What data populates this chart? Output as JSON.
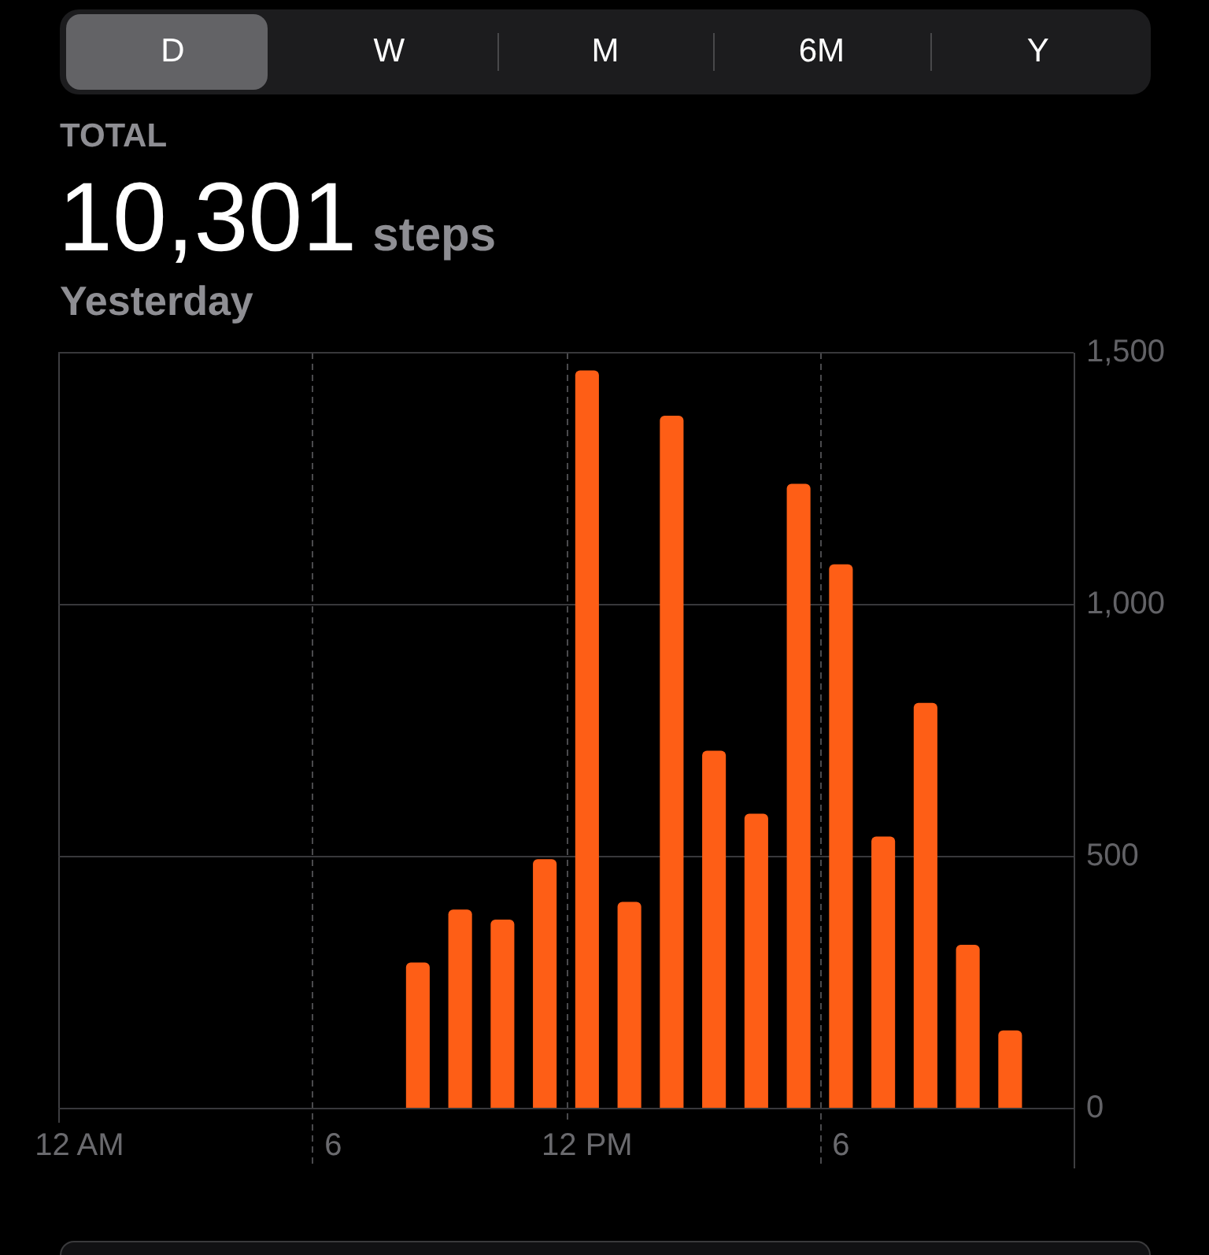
{
  "chart_data": {
    "type": "bar",
    "title": "10,301 steps",
    "subtitle": "Yesterday",
    "annotations": [
      "D",
      "W",
      "M",
      "6M",
      "Y",
      "TOTAL"
    ],
    "categories": [
      "12 AM",
      null,
      null,
      null,
      null,
      null,
      "6",
      null,
      null,
      null,
      null,
      null,
      "12 PM",
      null,
      null,
      null,
      null,
      null,
      "6",
      null,
      null,
      null,
      null,
      null
    ],
    "values": [
      null,
      null,
      null,
      null,
      null,
      null,
      null,
      null,
      290,
      395,
      375,
      495,
      1465,
      410,
      1375,
      710,
      585,
      1240,
      1080,
      540,
      805,
      325,
      155,
      null
    ],
    "color": "#fe5e16",
    "ylim": [
      0,
      1500
    ],
    "yticks": [
      0,
      500,
      {
        "value": 1000,
        "label": "1,000"
      },
      {
        "value": 1500,
        "label": "1,500"
      }
    ],
    "grid": true
  }
}
